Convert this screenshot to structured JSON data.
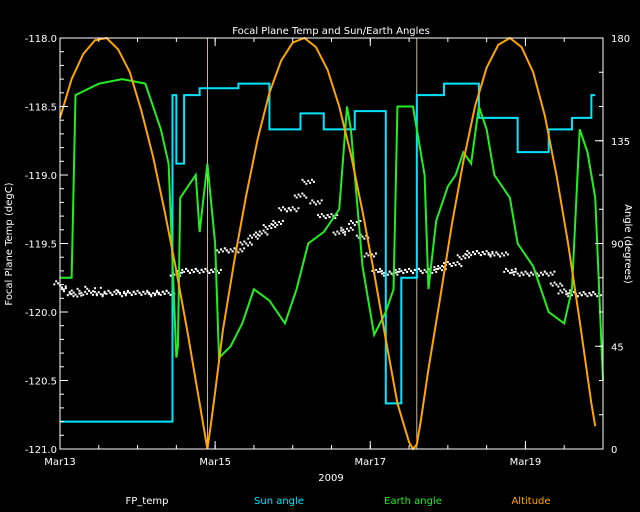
{
  "chart_data": {
    "type": "line",
    "title": "Focal Plane Temp and Sun/Earth Angles",
    "xlabel": "2009",
    "ylabel_left": "Focal Plane Temp (degC)",
    "ylabel_right": "Angle (degrees)",
    "xlim": [
      13.0,
      20.0
    ],
    "ylim_left": [
      -121.0,
      -118.0
    ],
    "ylim_right": [
      0,
      180
    ],
    "x_ticks": [
      {
        "value": 13.0,
        "label": "Mar13"
      },
      {
        "value": 15.0,
        "label": "Mar15"
      },
      {
        "value": 17.0,
        "label": "Mar17"
      },
      {
        "value": 19.0,
        "label": "Mar19"
      }
    ],
    "y_ticks_left": [
      {
        "value": -118.0,
        "label": "-118.0"
      },
      {
        "value": -118.5,
        "label": "-118.5"
      },
      {
        "value": -119.0,
        "label": "-119.0"
      },
      {
        "value": -119.5,
        "label": "-119.5"
      },
      {
        "value": -120.0,
        "label": "-120.0"
      },
      {
        "value": -120.5,
        "label": "-120.5"
      },
      {
        "value": -121.0,
        "label": "-121.0"
      }
    ],
    "y_ticks_right": [
      {
        "value": 0,
        "label": "0"
      },
      {
        "value": 45,
        "label": "45"
      },
      {
        "value": 90,
        "label": "90"
      },
      {
        "value": 135,
        "label": "135"
      },
      {
        "value": 180,
        "label": "180"
      }
    ],
    "vertical_markers": [
      14.9,
      17.6
    ],
    "legend": {
      "placement": "bottom",
      "entries": [
        {
          "name": "FP_temp",
          "color": "#ffffff"
        },
        {
          "name": "Sun angle",
          "color": "#00e5ff"
        },
        {
          "name": "Earth angle",
          "color": "#22ee22"
        },
        {
          "name": "Altitude",
          "color": "#ffa500"
        }
      ]
    },
    "series": [
      {
        "name": "FP_temp",
        "axis": "left",
        "style": "points",
        "color": "#ffffff",
        "x": [
          13.0,
          13.1,
          13.2,
          13.3,
          13.4,
          13.5,
          13.6,
          13.7,
          13.8,
          13.9,
          14.0,
          14.1,
          14.2,
          14.3,
          14.4,
          14.5,
          14.6,
          14.7,
          14.8,
          14.9,
          15.0,
          15.1,
          15.2,
          15.3,
          15.4,
          15.5,
          15.6,
          15.7,
          15.8,
          15.9,
          16.0,
          16.1,
          16.2,
          16.3,
          16.4,
          16.5,
          16.6,
          16.7,
          16.8,
          16.9,
          17.0,
          17.1,
          17.2,
          17.3,
          17.4,
          17.5,
          17.6,
          17.7,
          17.8,
          17.9,
          18.0,
          18.1,
          18.2,
          18.3,
          18.4,
          18.5,
          18.6,
          18.7,
          18.8,
          18.9,
          19.0,
          19.1,
          19.2,
          19.3,
          19.4,
          19.5,
          19.6,
          19.7,
          19.8,
          19.9
        ],
        "y": [
          -119.82,
          -119.87,
          -119.88,
          -119.86,
          -119.86,
          -119.87,
          -119.86,
          -119.86,
          -119.87,
          -119.86,
          -119.86,
          -119.86,
          -119.87,
          -119.86,
          -119.86,
          -119.72,
          -119.7,
          -119.7,
          -119.7,
          -119.7,
          -119.7,
          -119.55,
          -119.55,
          -119.55,
          -119.5,
          -119.45,
          -119.42,
          -119.38,
          -119.35,
          -119.25,
          -119.25,
          -119.15,
          -119.05,
          -119.2,
          -119.3,
          -119.3,
          -119.42,
          -119.4,
          -119.35,
          -119.45,
          -119.58,
          -119.7,
          -119.72,
          -119.72,
          -119.7,
          -119.7,
          -119.7,
          -119.7,
          -119.7,
          -119.68,
          -119.65,
          -119.65,
          -119.6,
          -119.57,
          -119.57,
          -119.57,
          -119.58,
          -119.58,
          -119.7,
          -119.72,
          -119.72,
          -119.72,
          -119.72,
          -119.72,
          -119.8,
          -119.85,
          -119.87,
          -119.87,
          -119.87,
          -119.87
        ]
      },
      {
        "name": "Sun angle",
        "axis": "right",
        "style": "step",
        "color": "#00e5ff",
        "x": [
          13.0,
          14.35,
          14.45,
          14.5,
          14.6,
          14.8,
          15.3,
          15.7,
          16.1,
          16.4,
          16.8,
          17.2,
          17.4,
          17.6,
          17.95,
          18.4,
          18.7,
          18.9,
          19.3,
          19.6,
          19.7,
          19.8,
          19.85,
          19.9
        ],
        "y": [
          12,
          12,
          155,
          125,
          155,
          158,
          160,
          140,
          147,
          140,
          148,
          20,
          75,
          155,
          160,
          145,
          145,
          130,
          140,
          145,
          145,
          145,
          155,
          155
        ]
      },
      {
        "name": "Earth angle",
        "axis": "right",
        "style": "line",
        "color": "#22ee22",
        "x": [
          13.0,
          13.15,
          13.2,
          13.5,
          13.8,
          14.1,
          14.3,
          14.4,
          14.5,
          14.52,
          14.55,
          14.75,
          14.8,
          14.9,
          15.0,
          15.05,
          15.2,
          15.35,
          15.5,
          15.7,
          15.9,
          16.05,
          16.2,
          16.4,
          16.6,
          16.7,
          16.75,
          16.9,
          17.0,
          17.05,
          17.2,
          17.3,
          17.35,
          17.55,
          17.7,
          17.75,
          17.85,
          18.0,
          18.1,
          18.2,
          18.3,
          18.4,
          18.5,
          18.6,
          18.8,
          18.9,
          19.0,
          19.1,
          19.2,
          19.3,
          19.5,
          19.6,
          19.7,
          19.8,
          19.9,
          20.0
        ],
        "y": [
          75,
          75,
          155,
          160,
          162,
          160,
          140,
          125,
          40,
          45,
          110,
          120,
          95,
          125,
          90,
          40,
          45,
          55,
          70,
          65,
          55,
          70,
          90,
          95,
          105,
          150,
          140,
          80,
          60,
          50,
          60,
          70,
          150,
          150,
          120,
          70,
          100,
          115,
          120,
          130,
          125,
          150,
          140,
          120,
          110,
          90,
          85,
          80,
          70,
          60,
          55,
          70,
          140,
          130,
          110,
          30
        ]
      },
      {
        "name": "Altitude",
        "axis": "right",
        "style": "line",
        "color": "#ffa500",
        "x": [
          13.0,
          13.15,
          13.3,
          13.45,
          13.6,
          13.75,
          13.9,
          14.05,
          14.2,
          14.35,
          14.5,
          14.65,
          14.8,
          14.85,
          14.9,
          14.95,
          15.0,
          15.1,
          15.25,
          15.4,
          15.55,
          15.7,
          15.85,
          16.0,
          16.15,
          16.3,
          16.45,
          16.6,
          16.75,
          16.9,
          17.05,
          17.2,
          17.35,
          17.5,
          17.55,
          17.6,
          17.65,
          17.75,
          17.9,
          18.05,
          18.2,
          18.35,
          18.5,
          18.65,
          18.8,
          18.95,
          19.1,
          19.25,
          19.4,
          19.55,
          19.7,
          19.85,
          19.9
        ],
        "y": [
          145,
          162,
          173,
          179,
          180,
          175,
          165,
          148,
          128,
          104,
          78,
          50,
          20,
          10,
          0,
          12,
          25,
          52,
          83,
          111,
          136,
          156,
          170,
          178,
          180,
          176,
          166,
          150,
          129,
          104,
          77,
          48,
          20,
          3,
          0,
          2,
          12,
          35,
          66,
          98,
          126,
          150,
          167,
          177,
          180,
          176,
          165,
          146,
          120,
          90,
          56,
          20,
          10
        ]
      }
    ]
  }
}
